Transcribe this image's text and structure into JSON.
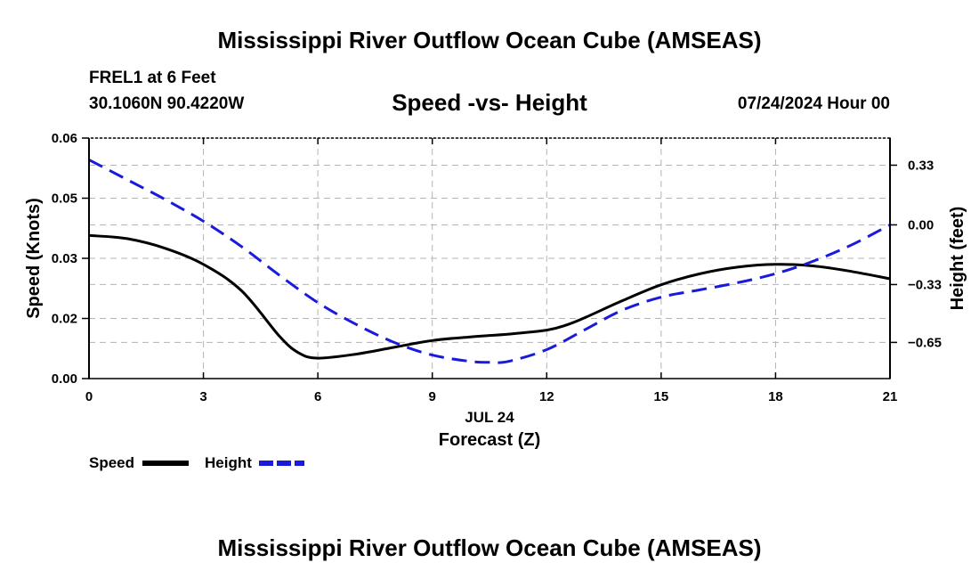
{
  "header": {
    "title": "Mississippi River Outflow Ocean Cube (AMSEAS)",
    "station": "FREL1 at 6 Feet",
    "coords": "30.1060N  90.4220W",
    "subtitle": "Speed -vs- Height",
    "date": "07/24/2024 Hour 00",
    "footer_title": "Mississippi River Outflow Ocean Cube (AMSEAS)"
  },
  "colors": {
    "speed": "#000000",
    "height": "#1a1adc",
    "grid": "#b4b4b4"
  },
  "chart_data": {
    "type": "line",
    "title": "Speed -vs- Height",
    "xlabel": "Forecast (Z)",
    "xlabel_date": "JUL 24",
    "ylabel_left": "Speed (Knots)",
    "ylabel_right": "Height (feet)",
    "grid": true,
    "xlim": [
      0,
      21
    ],
    "ylim_left": [
      0,
      0.06
    ],
    "ylim_right": [
      -0.85,
      0.48
    ],
    "x_ticks": [
      0,
      3,
      6,
      9,
      12,
      15,
      18,
      21
    ],
    "x_tick_labels": [
      "0",
      "3",
      "6",
      "9",
      "12",
      "15",
      "18",
      "21"
    ],
    "left_ticks": [
      0.0,
      0.015,
      0.03,
      0.045,
      0.06
    ],
    "left_tick_labels": [
      "0.00",
      "0.02",
      "0.03",
      "0.05",
      "0.06"
    ],
    "right_ticks": [
      -0.65,
      -0.33,
      0.0,
      0.33
    ],
    "right_tick_labels": [
      "−0.65",
      "−0.33",
      "0.00",
      "0.33"
    ],
    "series": [
      {
        "name": "Speed",
        "axis": "left",
        "style": "solid",
        "color": "#000000",
        "x": [
          0,
          1,
          2,
          3,
          4,
          5,
          5.5,
          6,
          7,
          8,
          9,
          10,
          11,
          12,
          12.5,
          13,
          14,
          15,
          16,
          17,
          18,
          19,
          20,
          21
        ],
        "values": [
          0.0357,
          0.0349,
          0.0325,
          0.0285,
          0.0219,
          0.0105,
          0.0064,
          0.0051,
          0.0061,
          0.0078,
          0.0095,
          0.0104,
          0.0111,
          0.0121,
          0.0133,
          0.0152,
          0.0195,
          0.0234,
          0.0261,
          0.0278,
          0.0285,
          0.0281,
          0.0267,
          0.0249
        ]
      },
      {
        "name": "Height",
        "axis": "right",
        "style": "dashed",
        "color": "#1a1adc",
        "x": [
          0,
          1,
          2,
          3,
          4,
          5,
          6,
          7,
          8,
          9,
          10,
          10.5,
          11,
          12,
          13,
          14,
          15,
          16,
          17,
          18,
          19,
          20,
          21
        ],
        "values": [
          0.36,
          0.25,
          0.14,
          0.02,
          -0.12,
          -0.28,
          -0.43,
          -0.55,
          -0.65,
          -0.72,
          -0.755,
          -0.76,
          -0.755,
          -0.69,
          -0.58,
          -0.47,
          -0.4,
          -0.36,
          -0.32,
          -0.27,
          -0.2,
          -0.11,
          0.0
        ]
      }
    ]
  }
}
